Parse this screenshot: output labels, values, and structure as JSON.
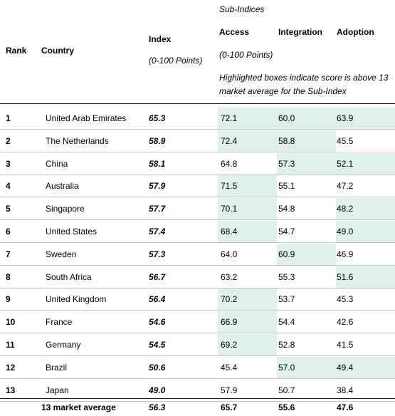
{
  "header": {
    "sub_indices": "Sub-Indices",
    "rank": "Rank",
    "country": "Country",
    "index": "Index",
    "index_unit": "(0-100 Points)",
    "access": "Access",
    "integration": "Integration",
    "adoption": "Adoption",
    "sub_unit": "(0-100 Points)",
    "note": "Highlighted boxes indicate score is above 13 market average for the Sub-Index"
  },
  "highlight_color": "#dfefec",
  "rows": [
    {
      "rank": "1",
      "country": "United Arab Emirates",
      "index": "65.3",
      "access": "72.1",
      "integration": "60.0",
      "adoption": "63.9",
      "hl_access": true,
      "hl_integration": true,
      "hl_adoption": true
    },
    {
      "rank": "2",
      "country": "The Netherlands",
      "index": "58.9",
      "access": "72.4",
      "integration": "58.8",
      "adoption": "45.5",
      "hl_access": true,
      "hl_integration": true,
      "hl_adoption": false
    },
    {
      "rank": "3",
      "country": "China",
      "index": "58.1",
      "access": "64.8",
      "integration": "57.3",
      "adoption": "52.1",
      "hl_access": false,
      "hl_integration": true,
      "hl_adoption": true
    },
    {
      "rank": "4",
      "country": "Australia",
      "index": "57.9",
      "access": "71.5",
      "integration": "55.1",
      "adoption": "47.2",
      "hl_access": true,
      "hl_integration": false,
      "hl_adoption": false
    },
    {
      "rank": "5",
      "country": "Singapore",
      "index": "57.7",
      "access": "70.1",
      "integration": "54.8",
      "adoption": "48.2",
      "hl_access": true,
      "hl_integration": false,
      "hl_adoption": true
    },
    {
      "rank": "6",
      "country": "United States",
      "index": "57.4",
      "access": "68.4",
      "integration": "54.7",
      "adoption": "49.0",
      "hl_access": true,
      "hl_integration": false,
      "hl_adoption": true
    },
    {
      "rank": "7",
      "country": "Sweden",
      "index": "57.3",
      "access": "64.0",
      "integration": "60.9",
      "adoption": "46.9",
      "hl_access": false,
      "hl_integration": true,
      "hl_adoption": false
    },
    {
      "rank": "8",
      "country": "South Africa",
      "index": "56.7",
      "access": "63.2",
      "integration": "55.3",
      "adoption": "51.6",
      "hl_access": false,
      "hl_integration": false,
      "hl_adoption": true
    },
    {
      "rank": "9",
      "country": "United Kingdom",
      "index": "56.4",
      "access": "70.2",
      "integration": "53.7",
      "adoption": "45.3",
      "hl_access": true,
      "hl_integration": false,
      "hl_adoption": false
    },
    {
      "rank": "10",
      "country": "France",
      "index": "54.6",
      "access": "66.9",
      "integration": "54.4",
      "adoption": "42.6",
      "hl_access": true,
      "hl_integration": false,
      "hl_adoption": false
    },
    {
      "rank": "11",
      "country": "Germany",
      "index": "54.5",
      "access": "69.2",
      "integration": "52.8",
      "adoption": "41.5",
      "hl_access": true,
      "hl_integration": false,
      "hl_adoption": false
    },
    {
      "rank": "12",
      "country": "Brazil",
      "index": "50.6",
      "access": "45.4",
      "integration": "57.0",
      "adoption": "49.4",
      "hl_access": false,
      "hl_integration": true,
      "hl_adoption": true
    },
    {
      "rank": "13",
      "country": "Japan",
      "index": "49.0",
      "access": "57.9",
      "integration": "50.7",
      "adoption": "38.4",
      "hl_access": false,
      "hl_integration": false,
      "hl_adoption": false
    }
  ],
  "footer": {
    "label": "13 market average",
    "index": "56.3",
    "access": "65.7",
    "integration": "55.6",
    "adoption": "47.6"
  }
}
